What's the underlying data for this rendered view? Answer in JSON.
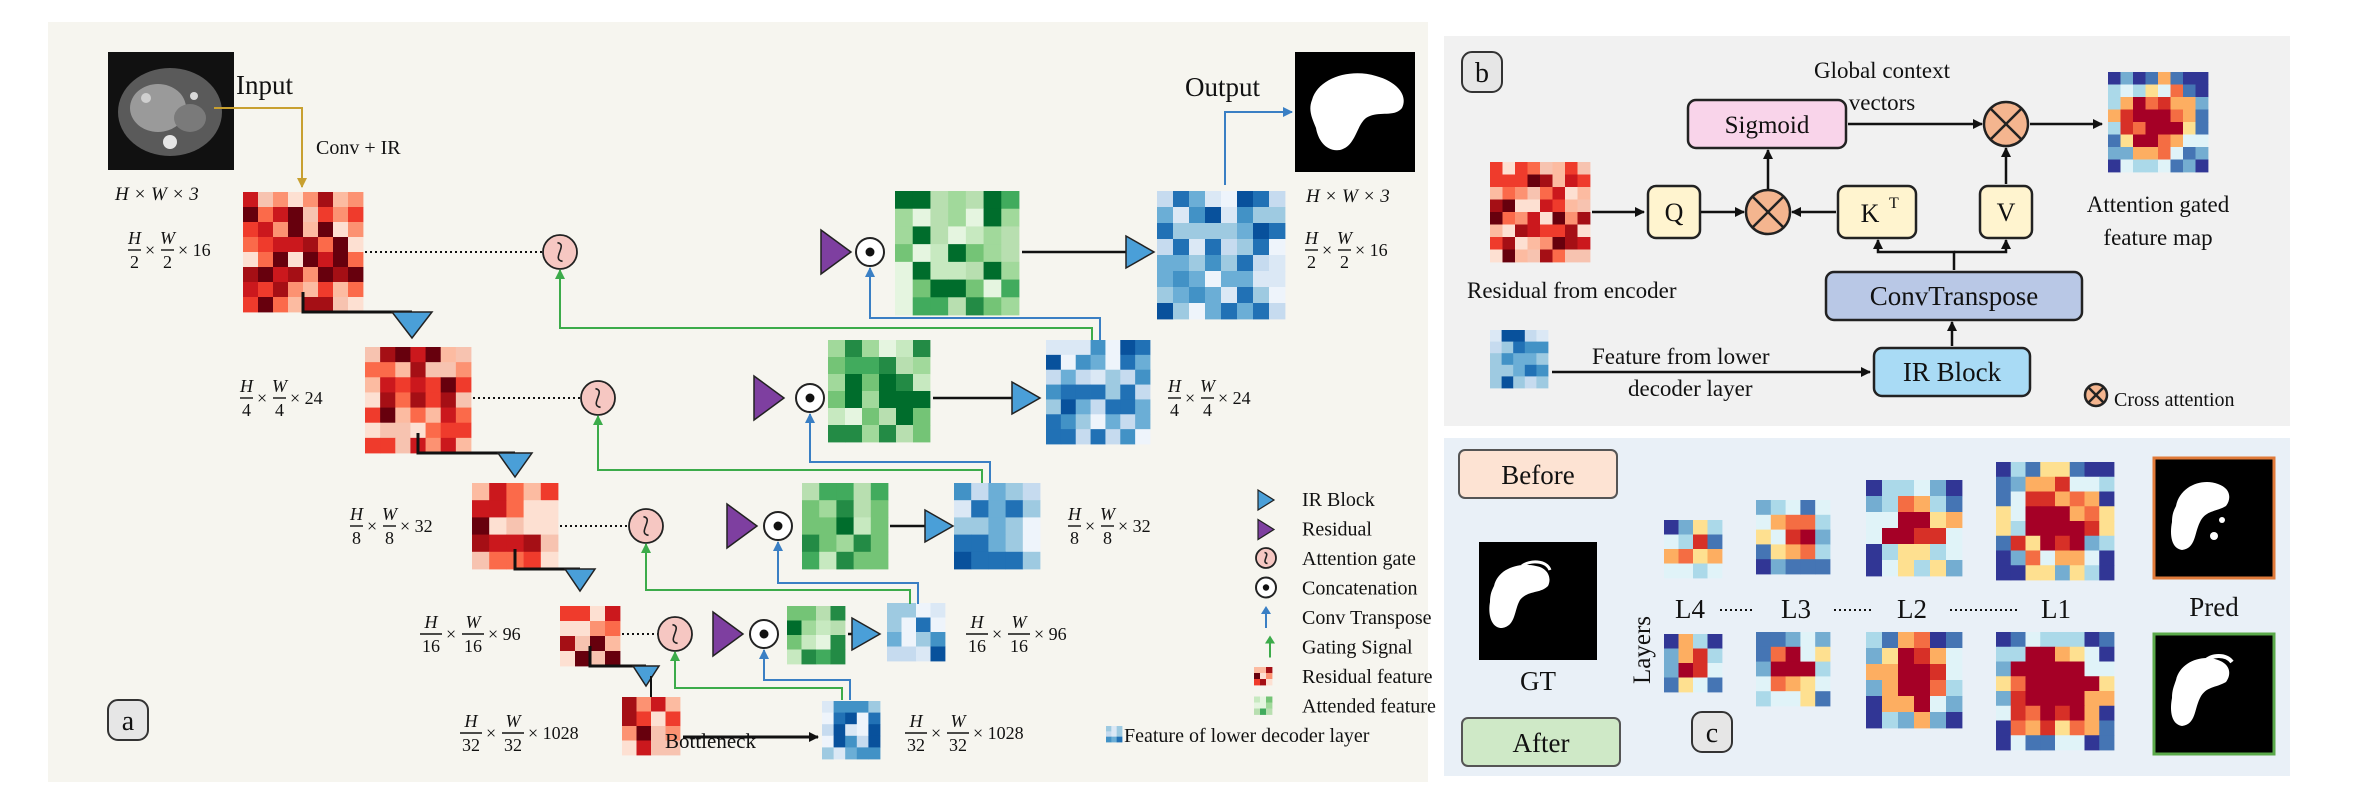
{
  "panel_a": {
    "label": "a",
    "input_label": "Input",
    "output_label": "Output",
    "conv_ir": "Conv + IR",
    "hw3_in": "H × W × 3",
    "hw3_out": "H × W × 3",
    "bottleneck": "Bottleneck",
    "levels": [
      {
        "num": "H",
        "den": "2",
        "num2": "W",
        "den2": "2",
        "ch": "16"
      },
      {
        "num": "H",
        "den": "4",
        "num2": "W",
        "den2": "4",
        "ch": "24"
      },
      {
        "num": "H",
        "den": "8",
        "num2": "W",
        "den2": "8",
        "ch": "32"
      },
      {
        "num": "H",
        "den": "16",
        "num2": "W",
        "den2": "16",
        "ch": "96"
      },
      {
        "num": "H",
        "den": "32",
        "num2": "W",
        "den2": "32",
        "ch": "1028"
      }
    ],
    "legend": [
      {
        "icon": "ir-block-icon",
        "text": "IR Block"
      },
      {
        "icon": "residual-icon",
        "text": "Residual"
      },
      {
        "icon": "attention-gate-icon",
        "text": "Attention gate"
      },
      {
        "icon": "concatenation-icon",
        "text": "Concatenation"
      },
      {
        "icon": "conv-transpose-icon",
        "text": "Conv Transpose"
      },
      {
        "icon": "gating-signal-icon",
        "text": "Gating Signal"
      },
      {
        "icon": "residual-feature-icon",
        "text": "Residual feature"
      },
      {
        "icon": "attended-feature-icon",
        "text": "Attended feature"
      },
      {
        "icon": "lower-decoder-feature-icon",
        "text": "Feature of lower decoder layer"
      }
    ]
  },
  "panel_b": {
    "label": "b",
    "global_context": "Global context",
    "vectors": "vectors",
    "sigmoid": "Sigmoid",
    "q": "Q",
    "kt": "K",
    "kt_sup": "T",
    "v": "V",
    "conv_transpose": "ConvTranspose",
    "ir_block": "IR Block",
    "residual_from_encoder": "Residual from encoder",
    "feature_from_lower_1": "Feature from lower",
    "feature_from_lower_2": "decoder layer",
    "attn_map_1": "Attention gated",
    "attn_map_2": "feature map",
    "cross_attention": "Cross attention"
  },
  "panel_c": {
    "label": "c",
    "before": "Before",
    "after": "After",
    "gt": "GT",
    "pred": "Pred",
    "layers": "Layers",
    "layer_labels": [
      "L4",
      "L3",
      "L2",
      "L1"
    ]
  },
  "colors": {
    "panel_bg": "#f6f5ef",
    "panel_b_bg": "#f1f1f1",
    "panel_c_bg": "#e9f0f7",
    "residual_red": "#d7301f",
    "attended_green": "#41ab5d",
    "decoder_blue": "#4a86c5",
    "ir_block": "#4a9fd8",
    "residual_purple": "#7e3fa0",
    "sigmoid_pink": "#f9d4ea",
    "convtranspose_blue": "#b9c8e6",
    "ir_light_blue": "#a9dbf5",
    "qkv_yellow": "#fff4cf",
    "before_orange": "#fde3d3",
    "after_green": "#cfe9c7"
  }
}
